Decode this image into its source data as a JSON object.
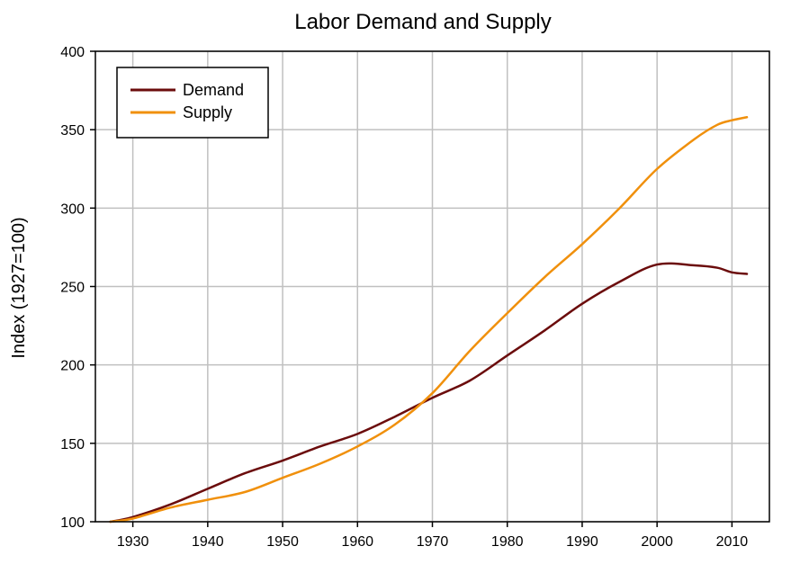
{
  "chart_data": {
    "type": "line",
    "title": "Labor Demand and Supply",
    "xlabel": "",
    "ylabel": "Index (1927=100)",
    "xlim": [
      1925,
      2015
    ],
    "ylim": [
      100,
      400
    ],
    "x_ticks": [
      1930,
      1940,
      1950,
      1960,
      1970,
      1980,
      1990,
      2000,
      2010
    ],
    "y_ticks": [
      100,
      150,
      200,
      250,
      300,
      350,
      400
    ],
    "x_tick_labels": [
      "1930",
      "1940",
      "1950",
      "1960",
      "1970",
      "1980",
      "1990",
      "2000",
      "2010"
    ],
    "y_tick_labels": [
      "100",
      "150",
      "200",
      "250",
      "300",
      "350",
      "400"
    ],
    "grid": true,
    "legend_position": "top-left",
    "series": [
      {
        "name": "Demand",
        "color": "#6b0c0c",
        "points": [
          [
            1927,
            100
          ],
          [
            1930,
            103
          ],
          [
            1935,
            111
          ],
          [
            1940,
            121
          ],
          [
            1945,
            131
          ],
          [
            1950,
            139
          ],
          [
            1955,
            148
          ],
          [
            1960,
            156
          ],
          [
            1965,
            167
          ],
          [
            1970,
            179
          ],
          [
            1975,
            190
          ],
          [
            1980,
            206
          ],
          [
            1985,
            222
          ],
          [
            1990,
            239
          ],
          [
            1995,
            253
          ],
          [
            2000,
            264
          ],
          [
            2005,
            263.5
          ],
          [
            2008,
            262
          ],
          [
            2010,
            259
          ],
          [
            2012,
            258
          ]
        ]
      },
      {
        "name": "Supply",
        "color": "#f0900c",
        "points": [
          [
            1927,
            100
          ],
          [
            1930,
            102
          ],
          [
            1935,
            109
          ],
          [
            1940,
            114
          ],
          [
            1945,
            119
          ],
          [
            1950,
            128
          ],
          [
            1955,
            137
          ],
          [
            1960,
            148
          ],
          [
            1965,
            162
          ],
          [
            1970,
            182
          ],
          [
            1975,
            209
          ],
          [
            1980,
            233
          ],
          [
            1985,
            256
          ],
          [
            1990,
            277
          ],
          [
            1995,
            300
          ],
          [
            2000,
            325
          ],
          [
            2005,
            344
          ],
          [
            2008,
            353
          ],
          [
            2010,
            356
          ],
          [
            2012,
            358
          ]
        ]
      }
    ]
  }
}
